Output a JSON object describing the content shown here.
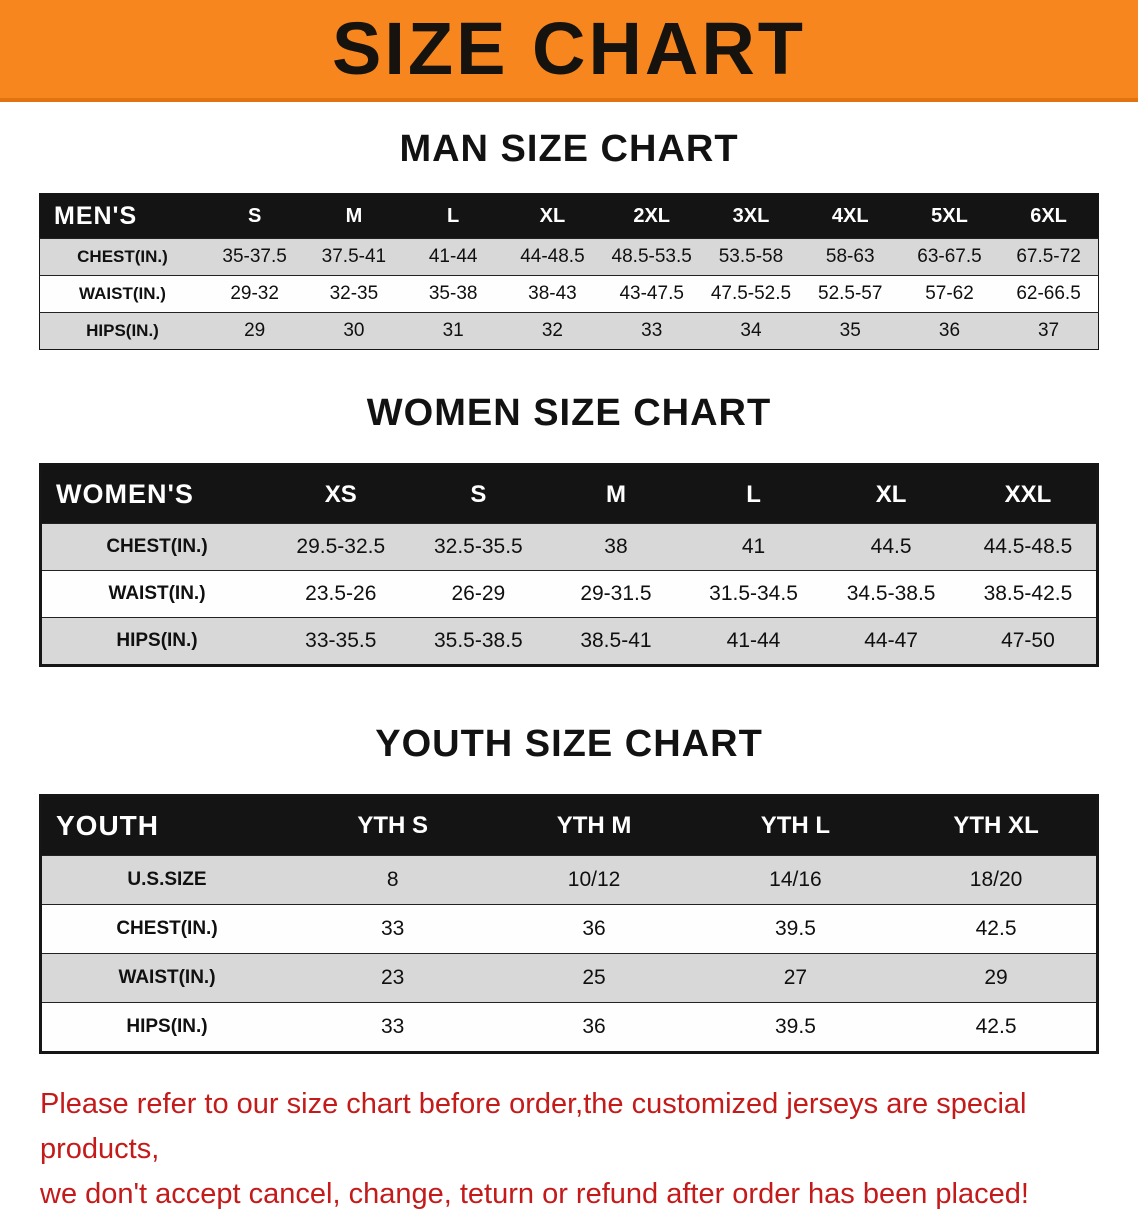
{
  "banner": {
    "title": "SIZE CHART",
    "bg_color": "#f6861d"
  },
  "colors": {
    "banner_orange": "#f6861d",
    "table_header_black": "#141414",
    "row_gray": "#d8d8d8",
    "notice_red": "#c41a1a"
  },
  "sections": [
    {
      "key": "men",
      "heading": "MAN SIZE CHART",
      "table": {
        "label": "MEN'S",
        "columns": [
          "S",
          "M",
          "L",
          "XL",
          "2XL",
          "3XL",
          "4XL",
          "5XL",
          "6XL"
        ],
        "rows": [
          {
            "label": "CHEST(IN.)",
            "values": [
              "35-37.5",
              "37.5-41",
              "41-44",
              "44-48.5",
              "48.5-53.5",
              "53.5-58",
              "58-63",
              "63-67.5",
              "67.5-72"
            ]
          },
          {
            "label": "WAIST(IN.)",
            "values": [
              "29-32",
              "32-35",
              "35-38",
              "38-43",
              "43-47.5",
              "47.5-52.5",
              "52.5-57",
              "57-62",
              "62-66.5"
            ]
          },
          {
            "label": "HIPS(IN.)",
            "values": [
              "29",
              "30",
              "31",
              "32",
              "33",
              "34",
              "35",
              "36",
              "37"
            ]
          }
        ]
      }
    },
    {
      "key": "women",
      "heading": "WOMEN SIZE CHART",
      "table": {
        "label": "WOMEN'S",
        "columns": [
          "XS",
          "S",
          "M",
          "L",
          "XL",
          "XXL"
        ],
        "rows": [
          {
            "label": "CHEST(IN.)",
            "values": [
              "29.5-32.5",
              "32.5-35.5",
              "38",
              "41",
              "44.5",
              "44.5-48.5"
            ]
          },
          {
            "label": "WAIST(IN.)",
            "values": [
              "23.5-26",
              "26-29",
              "29-31.5",
              "31.5-34.5",
              "34.5-38.5",
              "38.5-42.5"
            ]
          },
          {
            "label": "HIPS(IN.)",
            "values": [
              "33-35.5",
              "35.5-38.5",
              "38.5-41",
              "41-44",
              "44-47",
              "47-50"
            ]
          }
        ]
      }
    },
    {
      "key": "youth",
      "heading": "YOUTH SIZE CHART",
      "table": {
        "label": "YOUTH",
        "columns": [
          "YTH S",
          "YTH M",
          "YTH L",
          "YTH XL"
        ],
        "rows": [
          {
            "label": "U.S.SIZE",
            "values": [
              "8",
              "10/12",
              "14/16",
              "18/20"
            ]
          },
          {
            "label": "CHEST(IN.)",
            "values": [
              "33",
              "36",
              "39.5",
              "42.5"
            ]
          },
          {
            "label": "WAIST(IN.)",
            "values": [
              "23",
              "25",
              "27",
              "29"
            ]
          },
          {
            "label": "HIPS(IN.)",
            "values": [
              "33",
              "36",
              "39.5",
              "42.5"
            ]
          }
        ]
      }
    }
  ],
  "footer": {
    "line1": "Please refer to our size chart before order,the customized jerseys are special products,",
    "line2": "we don't accept cancel, change, teturn or refund after order has been placed!"
  }
}
